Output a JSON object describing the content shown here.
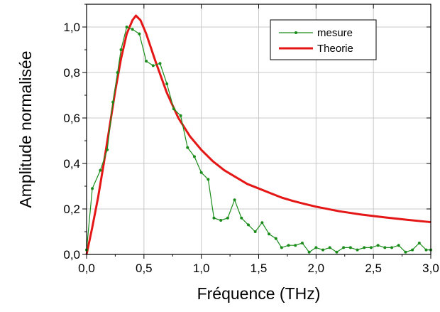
{
  "chart_data": {
    "type": "line",
    "xlabel": "Fréquence (THz)",
    "ylabel": "Amplitude normalisée",
    "xlim": [
      0,
      3.0
    ],
    "ylim": [
      0,
      1.1
    ],
    "xticks": [
      "0,0",
      "0,5",
      "1,0",
      "1,5",
      "2,0",
      "2,5",
      "3,0"
    ],
    "xtick_values": [
      0,
      0.5,
      1.0,
      1.5,
      2.0,
      2.5,
      3.0
    ],
    "yticks": [
      "0,0",
      "0,2",
      "0,4",
      "0,6",
      "0,8",
      "1,0"
    ],
    "ytick_values": [
      0,
      0.2,
      0.4,
      0.6,
      0.8,
      1.0
    ],
    "grid": true,
    "legend_position": "top-right",
    "colors": {
      "mesure": "#1a8c1a",
      "theorie": "#e41616",
      "grid": "#c8c8c8",
      "axis": "#000000"
    },
    "series": [
      {
        "name": "mesure",
        "x": [
          0.0,
          0.05,
          0.12,
          0.18,
          0.23,
          0.27,
          0.3,
          0.35,
          0.4,
          0.46,
          0.52,
          0.58,
          0.64,
          0.7,
          0.76,
          0.82,
          0.88,
          0.94,
          1.0,
          1.06,
          1.11,
          1.17,
          1.23,
          1.29,
          1.35,
          1.41,
          1.47,
          1.53,
          1.59,
          1.65,
          1.7,
          1.76,
          1.82,
          1.88,
          1.94,
          2.0,
          2.06,
          2.12,
          2.18,
          2.24,
          2.3,
          2.36,
          2.42,
          2.48,
          2.54,
          2.6,
          2.66,
          2.72,
          2.78,
          2.84,
          2.9,
          2.96,
          3.0
        ],
        "y": [
          0.02,
          0.29,
          0.37,
          0.46,
          0.67,
          0.8,
          0.9,
          1.0,
          0.99,
          0.97,
          0.85,
          0.83,
          0.84,
          0.75,
          0.64,
          0.61,
          0.47,
          0.43,
          0.36,
          0.33,
          0.16,
          0.15,
          0.16,
          0.24,
          0.16,
          0.13,
          0.1,
          0.14,
          0.09,
          0.07,
          0.03,
          0.04,
          0.04,
          0.05,
          0.01,
          0.03,
          0.02,
          0.03,
          0.01,
          0.03,
          0.03,
          0.02,
          0.03,
          0.03,
          0.04,
          0.03,
          0.03,
          0.04,
          0.01,
          0.02,
          0.05,
          0.02,
          0.02
        ]
      },
      {
        "name": "Theorie",
        "x": [
          0.0,
          0.05,
          0.1,
          0.15,
          0.2,
          0.25,
          0.3,
          0.35,
          0.4,
          0.43,
          0.47,
          0.52,
          0.6,
          0.7,
          0.8,
          0.9,
          1.0,
          1.1,
          1.2,
          1.3,
          1.4,
          1.5,
          1.6,
          1.7,
          1.8,
          1.9,
          2.0,
          2.2,
          2.4,
          2.6,
          2.8,
          3.0
        ],
        "y": [
          0.0,
          0.12,
          0.25,
          0.4,
          0.56,
          0.72,
          0.86,
          0.97,
          1.03,
          1.05,
          1.03,
          0.97,
          0.85,
          0.71,
          0.6,
          0.52,
          0.46,
          0.41,
          0.37,
          0.34,
          0.31,
          0.29,
          0.27,
          0.25,
          0.235,
          0.222,
          0.21,
          0.19,
          0.175,
          0.163,
          0.152,
          0.142
        ]
      }
    ]
  }
}
